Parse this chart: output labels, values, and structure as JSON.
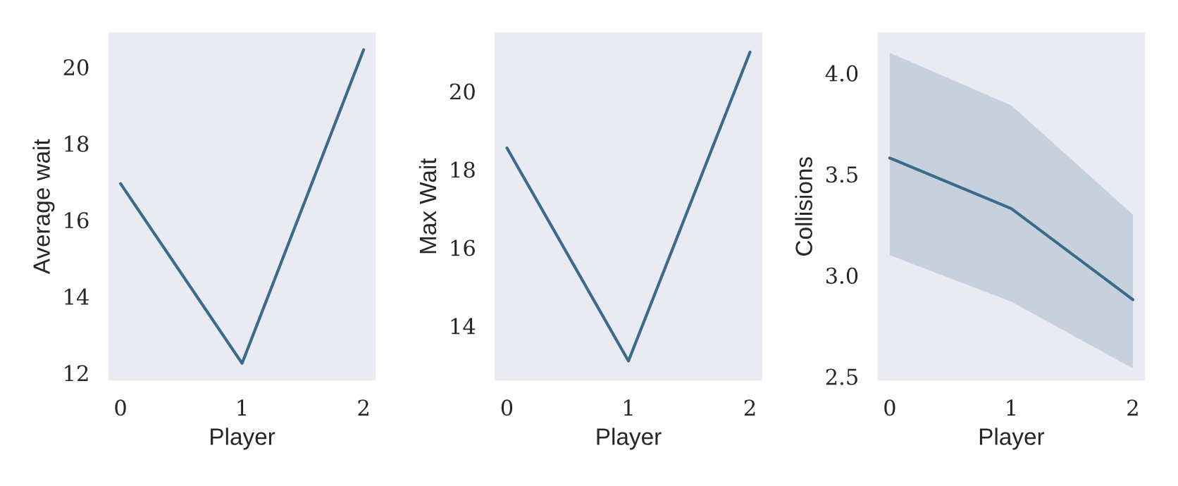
{
  "chart_data": [
    {
      "type": "line",
      "xlabel": "Player",
      "ylabel": "Average wait",
      "x": [
        0,
        1,
        2
      ],
      "xlim": [
        -0.1,
        2.1
      ],
      "xticks": [
        0,
        1,
        2
      ],
      "ylim": [
        11.8,
        20.9
      ],
      "yticks": [
        12,
        14,
        16,
        18,
        20
      ],
      "grid": false,
      "series": [
        {
          "color": "#3b6b8c",
          "values": [
            16.95,
            12.25,
            20.45
          ]
        }
      ]
    },
    {
      "type": "line",
      "xlabel": "Player",
      "ylabel": "Max Wait",
      "x": [
        0,
        1,
        2
      ],
      "xlim": [
        -0.1,
        2.1
      ],
      "xticks": [
        0,
        1,
        2
      ],
      "ylim": [
        12.6,
        21.5
      ],
      "yticks": [
        14,
        16,
        18,
        20
      ],
      "grid": false,
      "series": [
        {
          "color": "#3b6b8c",
          "values": [
            18.55,
            13.1,
            21.0
          ]
        }
      ]
    },
    {
      "type": "line",
      "xlabel": "Player",
      "ylabel": "Collisions",
      "x": [
        0,
        1,
        2
      ],
      "xlim": [
        -0.1,
        2.1
      ],
      "xticks": [
        0,
        1,
        2
      ],
      "ylim": [
        2.48,
        4.2
      ],
      "yticks": [
        {
          "value": 2.5,
          "label": "2.5"
        },
        {
          "value": 3.0,
          "label": "3.0"
        },
        {
          "value": 3.5,
          "label": "3.5"
        },
        {
          "value": 4.0,
          "label": "4.0"
        }
      ],
      "grid": false,
      "series": [
        {
          "color": "#3b6b8c",
          "values": [
            3.58,
            3.33,
            2.88
          ],
          "lower": [
            3.1,
            2.87,
            2.54
          ],
          "upper": [
            4.1,
            3.84,
            3.3
          ]
        }
      ]
    }
  ]
}
